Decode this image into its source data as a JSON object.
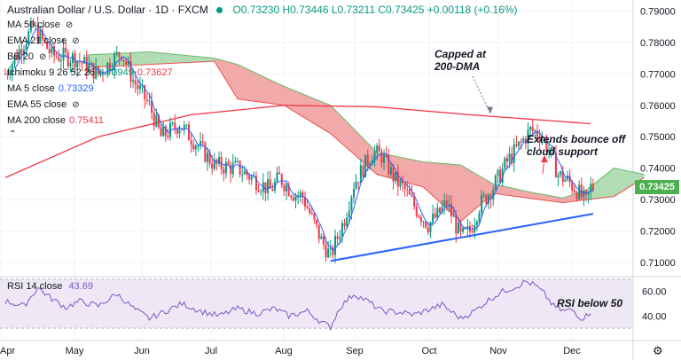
{
  "header": {
    "title": "Australian Dollar / U.S. Dollar · 1D · FXCM",
    "ohlc": "O0.73230 H0.73446 L0.73211 C0.73425 +0.00118 (+0.16%)"
  },
  "legend": [
    {
      "label": "MA 50 close",
      "value": "",
      "color": "#131722"
    },
    {
      "label": "EMA 21 close",
      "value": "",
      "color": "#131722"
    },
    {
      "label": "BB 20",
      "value": "",
      "color": "#131722"
    },
    {
      "label": "Ichimoku 9 26 52 26",
      "value": "0.73949",
      "value2": "0.73627",
      "color": "#131722",
      "value_color": "#089981",
      "value2_color": "#f23645"
    },
    {
      "label": "MA 5 close",
      "value": "0.73329",
      "color": "#131722",
      "value_color": "#2962ff"
    },
    {
      "label": "EMA 55 close",
      "value": "",
      "color": "#131722"
    },
    {
      "label": "MA 200 close",
      "value": "0.75411",
      "color": "#131722",
      "value_color": "#f23645"
    }
  ],
  "icons": {
    "visibility": "eye-off-icon",
    "collapse": "chevron-up-icon",
    "settings": "gear-icon"
  },
  "annotations": {
    "capped": "Capped at\n200-DMA",
    "bounce": "Extends bounce off\ncloud support",
    "rsi": "RSI below 50"
  },
  "last_price": "0.73425",
  "rsi_legend": {
    "label": "RSI 14 close",
    "value": "43.69"
  },
  "colors": {
    "up": "#089981",
    "down": "#f23645",
    "ma200": "#f23645",
    "ma5": "#2962ff",
    "trendline": "#2962ff",
    "cloud_bull": "#a5d6a7",
    "cloud_bear": "#ef9a9a",
    "rsi_line": "#7e57c2",
    "rsi_band": "#ede7f6",
    "price_tag": "#4caf50"
  },
  "chart_data": [
    {
      "type": "candlestick",
      "title": "Australian Dollar / U.S. Dollar · 1D · FXCM",
      "x_ticks": [
        "Apr",
        "May",
        "Jun",
        "Jul",
        "Aug",
        "Sep",
        "Oct",
        "Nov",
        "Dec"
      ],
      "y_ticks": [
        "0.79000",
        "0.78000",
        "0.77000",
        "0.76000",
        "0.75000",
        "0.74000",
        "0.73000",
        "0.72000",
        "0.71000"
      ],
      "ylim": [
        0.7055,
        0.7935
      ],
      "closes_approx": [
        [
          0,
          0.77
        ],
        [
          12,
          0.785
        ],
        [
          20,
          0.776
        ],
        [
          30,
          0.775
        ],
        [
          40,
          0.77
        ],
        [
          50,
          0.777
        ],
        [
          55,
          0.768
        ],
        [
          62,
          0.76
        ],
        [
          67,
          0.75
        ],
        [
          75,
          0.754
        ],
        [
          82,
          0.748
        ],
        [
          90,
          0.741
        ],
        [
          100,
          0.74
        ],
        [
          106,
          0.737
        ],
        [
          114,
          0.733
        ],
        [
          118,
          0.737
        ],
        [
          124,
          0.732
        ],
        [
          128,
          0.731
        ],
        [
          136,
          0.717
        ],
        [
          140,
          0.712
        ],
        [
          146,
          0.724
        ],
        [
          150,
          0.735
        ],
        [
          154,
          0.74
        ],
        [
          158,
          0.745
        ],
        [
          162,
          0.744
        ],
        [
          168,
          0.736
        ],
        [
          172,
          0.733
        ],
        [
          176,
          0.728
        ],
        [
          182,
          0.722
        ],
        [
          186,
          0.725
        ],
        [
          190,
          0.729
        ],
        [
          196,
          0.718
        ],
        [
          200,
          0.72
        ],
        [
          204,
          0.728
        ],
        [
          210,
          0.734
        ],
        [
          216,
          0.742
        ],
        [
          222,
          0.748
        ],
        [
          226,
          0.752
        ],
        [
          230,
          0.751
        ],
        [
          234,
          0.746
        ],
        [
          238,
          0.738
        ],
        [
          242,
          0.736
        ],
        [
          246,
          0.733
        ],
        [
          250,
          0.729
        ],
        [
          252,
          0.734
        ]
      ],
      "ma200_approx": [
        [
          0,
          0.737
        ],
        [
          40,
          0.75
        ],
        [
          80,
          0.757
        ],
        [
          120,
          0.76
        ],
        [
          160,
          0.7595
        ],
        [
          200,
          0.757
        ],
        [
          253,
          0.7541
        ]
      ],
      "trendline": [
        [
          140,
          0.7105
        ],
        [
          253,
          0.7255
        ]
      ],
      "ichimoku_cloud": [
        {
          "x": 35,
          "a": 0.776,
          "b": 0.772
        },
        {
          "x": 62,
          "a": 0.777,
          "b": 0.773
        },
        {
          "x": 90,
          "a": 0.775,
          "b": 0.774
        },
        {
          "x": 100,
          "a": 0.773,
          "b": 0.762
        },
        {
          "x": 120,
          "a": 0.766,
          "b": 0.76
        },
        {
          "x": 140,
          "a": 0.76,
          "b": 0.751
        },
        {
          "x": 160,
          "a": 0.745,
          "b": 0.738
        },
        {
          "x": 180,
          "a": 0.742,
          "b": 0.734
        },
        {
          "x": 196,
          "a": 0.741,
          "b": 0.723
        },
        {
          "x": 210,
          "a": 0.735,
          "b": 0.732
        },
        {
          "x": 225,
          "a": 0.7325,
          "b": 0.7305
        },
        {
          "x": 240,
          "a": 0.7305,
          "b": 0.729
        },
        {
          "x": 250,
          "a": 0.733,
          "b": 0.73
        },
        {
          "x": 262,
          "a": 0.74,
          "b": 0.731
        },
        {
          "x": 275,
          "a": 0.738,
          "b": 0.737
        }
      ]
    },
    {
      "type": "line",
      "title": "RSI 14 close",
      "y_ticks": [
        "60.00",
        "40.00"
      ],
      "ylim": [
        20,
        72
      ],
      "band": [
        30,
        70
      ],
      "rsi_approx": [
        [
          0,
          52
        ],
        [
          8,
          48
        ],
        [
          14,
          63
        ],
        [
          20,
          54
        ],
        [
          26,
          47
        ],
        [
          32,
          52
        ],
        [
          40,
          48
        ],
        [
          48,
          58
        ],
        [
          56,
          45
        ],
        [
          62,
          38
        ],
        [
          68,
          43
        ],
        [
          76,
          50
        ],
        [
          84,
          44
        ],
        [
          92,
          40
        ],
        [
          100,
          46
        ],
        [
          108,
          42
        ],
        [
          116,
          46
        ],
        [
          122,
          40
        ],
        [
          130,
          44
        ],
        [
          136,
          35
        ],
        [
          140,
          31
        ],
        [
          144,
          47
        ],
        [
          150,
          58
        ],
        [
          156,
          52
        ],
        [
          162,
          44
        ],
        [
          170,
          43
        ],
        [
          176,
          41
        ],
        [
          182,
          45
        ],
        [
          188,
          49
        ],
        [
          196,
          38
        ],
        [
          202,
          44
        ],
        [
          208,
          53
        ],
        [
          214,
          60
        ],
        [
          220,
          64
        ],
        [
          224,
          68
        ],
        [
          228,
          65
        ],
        [
          232,
          58
        ],
        [
          236,
          48
        ],
        [
          240,
          44
        ],
        [
          244,
          45
        ],
        [
          248,
          38
        ],
        [
          250,
          40
        ],
        [
          252,
          43.7
        ]
      ]
    }
  ]
}
